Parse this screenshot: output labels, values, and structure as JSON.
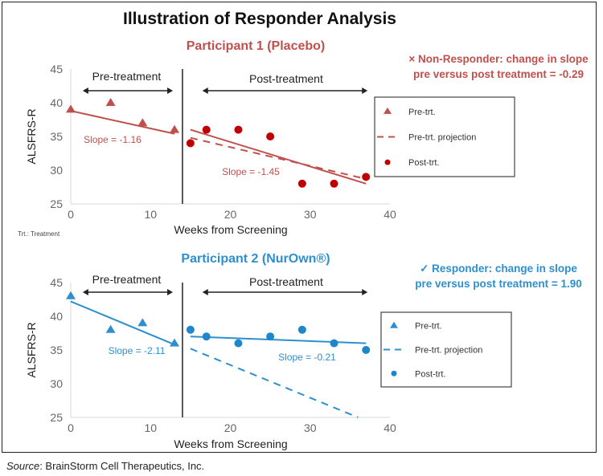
{
  "title": "Illustration of Responder Analysis",
  "footnote": "Trt.: Treatment",
  "source": {
    "label": "Source",
    "text": ": BrainStorm Cell Therapeutics, Inc."
  },
  "chart_data": [
    {
      "type": "scatter",
      "title": "Participant 1 (Placebo)",
      "color": "#c0504d",
      "point_color": "#c00000",
      "annotation": "× Non-Responder: change in slope",
      "annotation_line2": "pre versus post treatment = -0.29",
      "xlabel": "Weeks from Screening",
      "ylabel": "ALSFRS-R",
      "xlim": [
        0,
        40
      ],
      "ylim": [
        25,
        45
      ],
      "xticks": [
        "0",
        "10",
        "20",
        "30",
        "40"
      ],
      "yticks": [
        "25",
        "30",
        "35",
        "40",
        "45"
      ],
      "treatment_week": 14,
      "phase_labels": [
        "Pre-treatment",
        "Post-treatment"
      ],
      "pre_points": [
        [
          0,
          39
        ],
        [
          5,
          40
        ],
        [
          9,
          37
        ],
        [
          13,
          36
        ]
      ],
      "pre_fit": [
        [
          0,
          38.8
        ],
        [
          13,
          35.4
        ]
      ],
      "pre_slope_label": "Slope = -1.16",
      "post_points": [
        [
          15,
          34
        ],
        [
          17,
          36
        ],
        [
          21,
          36
        ],
        [
          25,
          35
        ],
        [
          29,
          28
        ],
        [
          33,
          28
        ],
        [
          37,
          29
        ]
      ],
      "post_fit": [
        [
          15,
          36
        ],
        [
          37,
          28
        ]
      ],
      "post_slope_label": "Slope = -1.45",
      "projection": [
        [
          15,
          34.8
        ],
        [
          37,
          28.7
        ]
      ],
      "legend": [
        "Pre-trt.",
        "Pre-trt. projection",
        "Post-trt."
      ],
      "legend_position": "right"
    },
    {
      "type": "scatter",
      "title": "Participant 2 (NurOwn®)",
      "color": "#2e8fcf",
      "point_color": "#1f86cc",
      "annotation": "✓ Responder: change in slope",
      "annotation_line2": "pre versus post treatment = 1.90",
      "xlabel": "Weeks from Screening",
      "ylabel": "ALSFRS-R",
      "xlim": [
        0,
        40
      ],
      "ylim": [
        25,
        45
      ],
      "xticks": [
        "0",
        "10",
        "20",
        "30",
        "40"
      ],
      "yticks": [
        "25",
        "30",
        "35",
        "40",
        "45"
      ],
      "treatment_week": 14,
      "phase_labels": [
        "Pre-treatment",
        "Post-treatment"
      ],
      "pre_points": [
        [
          0,
          43
        ],
        [
          5,
          38
        ],
        [
          9,
          39
        ],
        [
          13,
          36
        ]
      ],
      "pre_fit": [
        [
          0,
          42.2
        ],
        [
          13,
          35.8
        ]
      ],
      "pre_slope_label": "Slope = -2.11",
      "post_points": [
        [
          15,
          38
        ],
        [
          17,
          37
        ],
        [
          21,
          36
        ],
        [
          25,
          37
        ],
        [
          29,
          38
        ],
        [
          33,
          36
        ],
        [
          37,
          35
        ]
      ],
      "post_fit": [
        [
          15,
          37
        ],
        [
          37,
          36
        ]
      ],
      "post_slope_label": "Slope = -0.21",
      "projection": [
        [
          15,
          35.2
        ],
        [
          36,
          25
        ]
      ],
      "legend": [
        "Pre-trt.",
        "Pre-trt. projection",
        "Post-trt."
      ],
      "legend_position": "right"
    }
  ]
}
